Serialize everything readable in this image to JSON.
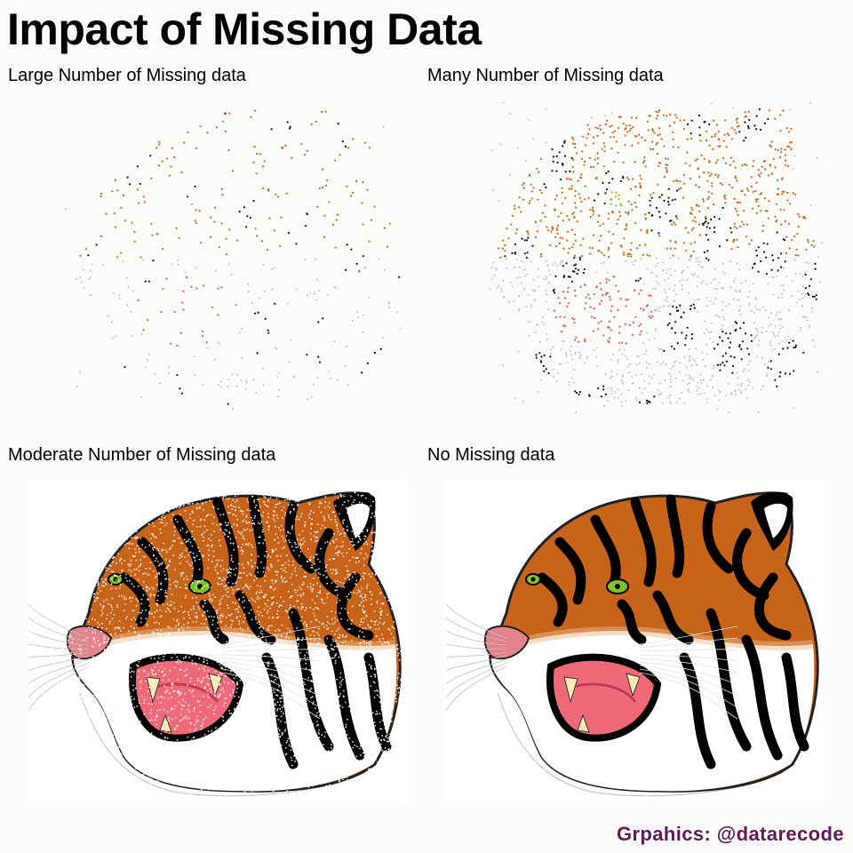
{
  "title": "Impact of Missing Data",
  "panels": [
    {
      "label": "Large Number of Missing data",
      "density": 0.04
    },
    {
      "label": "Many Number of Missing data",
      "density": 0.18
    },
    {
      "label": "Moderate Number of Missing data",
      "density": 0.7
    },
    {
      "label": "No Missing data",
      "density": 1.0
    }
  ],
  "caption": "Grpahics: @datarecode",
  "colors": {
    "background": "#fbfbf8",
    "orange": "#c8641a",
    "black": "#111111",
    "pink": "#e0506e",
    "green": "#7dc428",
    "gray": "#c8c8c8",
    "caption": "#5e1a5c"
  }
}
